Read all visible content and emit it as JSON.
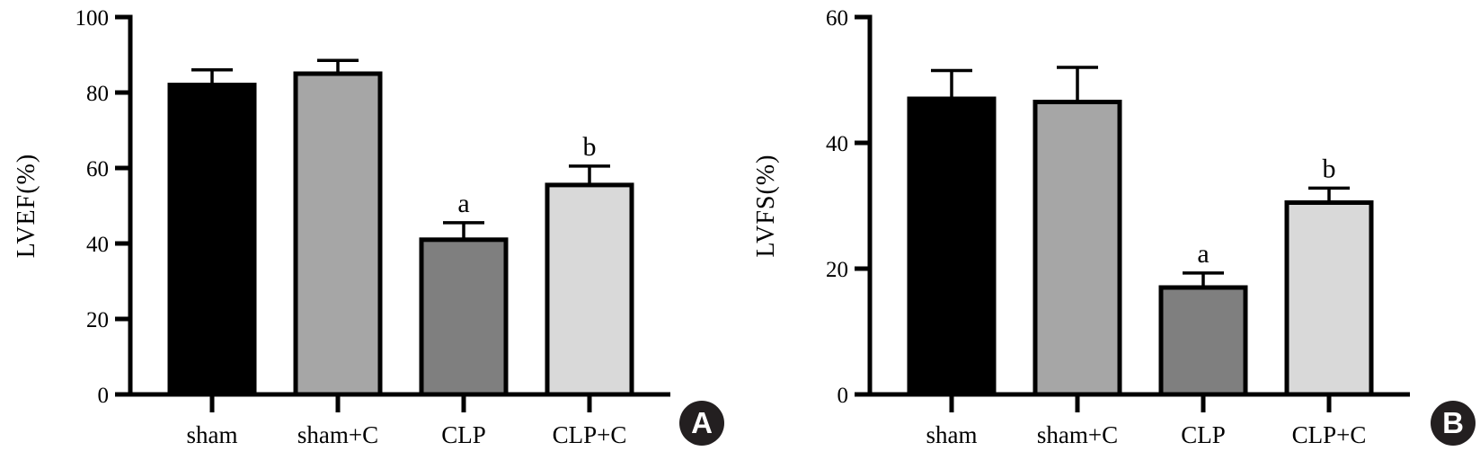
{
  "figure": {
    "background": "#ffffff",
    "axis_color": "#000000",
    "text_color": "#000000"
  },
  "badge": {
    "bg": "#231f20",
    "fg": "#ffffff"
  },
  "chart_data": [
    {
      "type": "bar",
      "panel_label": "A",
      "title": "",
      "xlabel": "",
      "ylabel": "LVEF(%)",
      "ylim": [
        0,
        100
      ],
      "yticks": [
        0,
        20,
        40,
        60,
        80,
        100
      ],
      "categories": [
        "sham",
        "sham+C",
        "CLP",
        "CLP+C"
      ],
      "values": [
        82,
        85,
        41,
        55.5
      ],
      "errors": [
        4,
        3.5,
        4.5,
        5
      ],
      "significance": [
        "",
        "",
        "a",
        "b"
      ],
      "bar_colors": [
        "#000000",
        "#a6a6a6",
        "#7f7f7f",
        "#d9d9d9"
      ],
      "bar_edge_color": "#000000",
      "error_bar_style": "cap-above-only",
      "grid": false,
      "legend": "none"
    },
    {
      "type": "bar",
      "panel_label": "B",
      "title": "",
      "xlabel": "",
      "ylabel": "LVFS(%)",
      "ylim": [
        0,
        60
      ],
      "yticks": [
        0,
        20,
        40,
        60
      ],
      "categories": [
        "sham",
        "sham+C",
        "CLP",
        "CLP+C"
      ],
      "values": [
        47,
        46.5,
        17,
        30.5
      ],
      "errors": [
        4.5,
        5.5,
        2.3,
        2.3
      ],
      "significance": [
        "",
        "",
        "a",
        "b"
      ],
      "bar_colors": [
        "#000000",
        "#a6a6a6",
        "#7f7f7f",
        "#d9d9d9"
      ],
      "bar_edge_color": "#000000",
      "error_bar_style": "cap-above-only",
      "grid": false,
      "legend": "none"
    }
  ]
}
